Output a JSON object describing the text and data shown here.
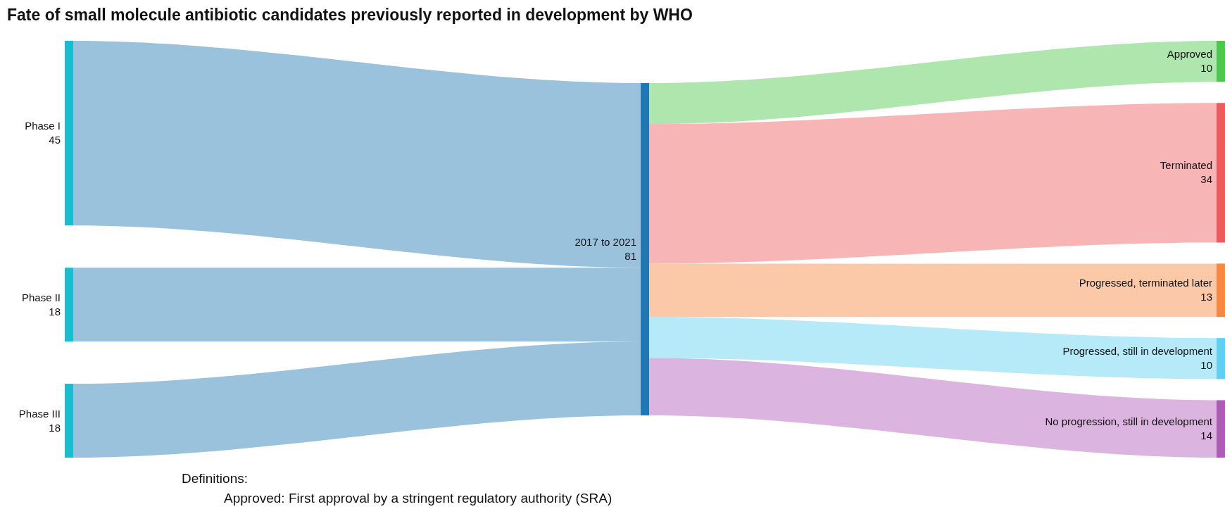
{
  "chart_data": {
    "type": "other",
    "title": "Fate of small molecule antibiotic candidates previously reported in development by WHO",
    "categories": [
      "Phase I",
      "Phase II",
      "Phase III",
      "2017 to 2021",
      "Approved",
      "Terminated",
      "Progressed, terminated later",
      "Progressed, still in development",
      "No progression, still in development"
    ],
    "values": [
      45,
      18,
      18,
      81,
      10,
      34,
      13,
      10,
      14
    ],
    "data_labels": true,
    "colors": [
      "#17becf",
      "#17becf",
      "#17becf",
      "#1f77b4",
      "#4cc84c",
      "#f05a5a",
      "#f8883f",
      "#5fd0f2",
      "#b05ab8"
    ],
    "annotations": [
      "Definitions:",
      "Approved: First approval by a stringent regulatory authority (SRA)"
    ]
  }
}
